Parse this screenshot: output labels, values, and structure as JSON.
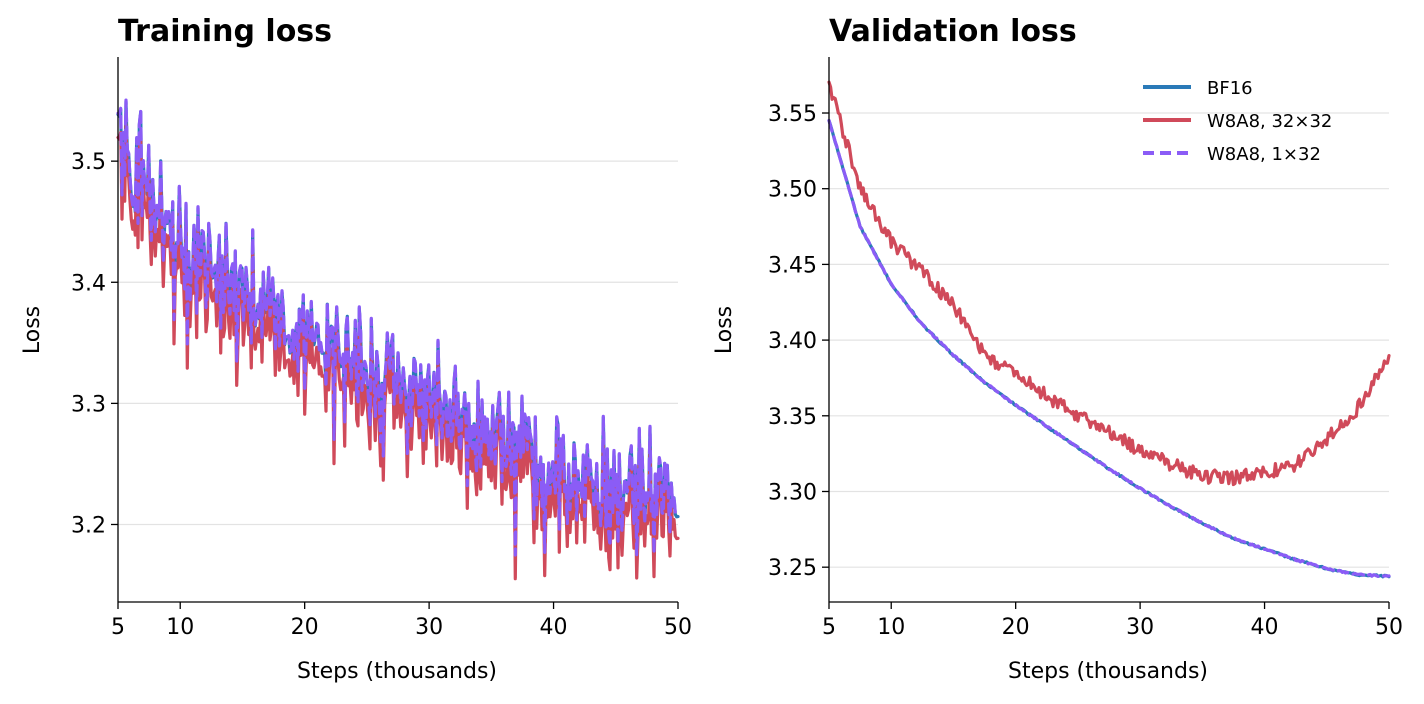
{
  "chart_data": [
    {
      "type": "line",
      "title": "Training loss",
      "xlabel": "Steps (thousands)",
      "ylabel": "Loss",
      "xlim": [
        5,
        50
      ],
      "ylim": [
        3.136,
        3.586
      ],
      "xticks": [
        5,
        10,
        20,
        30,
        40,
        50
      ],
      "yticks": [
        3.2,
        3.3,
        3.4,
        3.5
      ],
      "ytick_labels": [
        "3.2",
        "3.3",
        "3.4",
        "3.5"
      ],
      "grid": "horizontal",
      "legend": "none",
      "noisy": true,
      "series": [
        {
          "color": "#2a7ab8",
          "dash": "solid",
          "x": [
            5,
            7.5,
            10,
            12.5,
            15,
            17.5,
            20,
            22.5,
            25,
            27.5,
            30,
            32.5,
            35,
            37.5,
            40,
            42.5,
            45,
            47.5,
            50
          ],
          "y": [
            3.53,
            3.47,
            3.43,
            3.41,
            3.39,
            3.375,
            3.36,
            3.345,
            3.33,
            3.315,
            3.3,
            3.29,
            3.275,
            3.265,
            3.25,
            3.24,
            3.235,
            3.228,
            3.22
          ]
        },
        {
          "color": "#d04a5a",
          "dash": "solid",
          "x": [
            5,
            7.5,
            10,
            12.5,
            15,
            17.5,
            20,
            22.5,
            25,
            27.5,
            30,
            32.5,
            35,
            37.5,
            40,
            42.5,
            45,
            47.5,
            50
          ],
          "y": [
            3.515,
            3.455,
            3.415,
            3.395,
            3.375,
            3.36,
            3.345,
            3.33,
            3.315,
            3.3,
            3.288,
            3.276,
            3.262,
            3.25,
            3.236,
            3.226,
            3.22,
            3.214,
            3.206
          ]
        },
        {
          "color": "#8b5cf6",
          "dash": "dashed",
          "x": [
            5,
            7.5,
            10,
            12.5,
            15,
            17.5,
            20,
            22.5,
            25,
            27.5,
            30,
            32.5,
            35,
            37.5,
            40,
            42.5,
            45,
            47.5,
            50
          ],
          "y": [
            3.53,
            3.47,
            3.43,
            3.41,
            3.39,
            3.375,
            3.36,
            3.345,
            3.33,
            3.315,
            3.3,
            3.29,
            3.275,
            3.265,
            3.25,
            3.24,
            3.235,
            3.228,
            3.22
          ]
        }
      ]
    },
    {
      "type": "line",
      "title": "Validation loss",
      "xlabel": "Steps (thousands)",
      "ylabel": "Loss",
      "xlim": [
        5,
        50
      ],
      "ylim": [
        3.227,
        3.587
      ],
      "xticks": [
        5,
        10,
        20,
        30,
        40,
        50
      ],
      "yticks": [
        3.25,
        3.3,
        3.35,
        3.4,
        3.45,
        3.5,
        3.55
      ],
      "ytick_labels": [
        "3.25",
        "3.30",
        "3.35",
        "3.40",
        "3.45",
        "3.50",
        "3.55"
      ],
      "grid": "horizontal",
      "legend": "top-right",
      "noisy": false,
      "series": [
        {
          "name": "BF16",
          "color": "#2a7ab8",
          "dash": "solid",
          "x": [
            5,
            7.5,
            10,
            12.5,
            15,
            17.5,
            20,
            22.5,
            25,
            27.5,
            30,
            32.5,
            35,
            37.5,
            40,
            42.5,
            45,
            47.5,
            50
          ],
          "y": [
            3.545,
            3.475,
            3.437,
            3.41,
            3.39,
            3.372,
            3.357,
            3.343,
            3.329,
            3.315,
            3.302,
            3.29,
            3.279,
            3.269,
            3.262,
            3.255,
            3.249,
            3.245,
            3.244
          ]
        },
        {
          "name": "W8A8, 32×32",
          "color": "#d04a5a",
          "dash": "solid",
          "x": [
            5,
            7.5,
            10,
            12.5,
            15,
            17.5,
            20,
            22.5,
            25,
            27.5,
            30,
            32.5,
            35,
            37.5,
            40,
            42.5,
            45,
            47.5,
            50
          ],
          "y": [
            3.57,
            3.5,
            3.465,
            3.445,
            3.423,
            3.39,
            3.378,
            3.363,
            3.35,
            3.34,
            3.327,
            3.318,
            3.31,
            3.309,
            3.312,
            3.318,
            3.335,
            3.355,
            3.39
          ]
        },
        {
          "name": "W8A8, 1×32",
          "color": "#8b5cf6",
          "dash": "dashed",
          "x": [
            5,
            7.5,
            10,
            12.5,
            15,
            17.5,
            20,
            22.5,
            25,
            27.5,
            30,
            32.5,
            35,
            37.5,
            40,
            42.5,
            45,
            47.5,
            50
          ],
          "y": [
            3.545,
            3.475,
            3.437,
            3.41,
            3.39,
            3.372,
            3.357,
            3.343,
            3.329,
            3.315,
            3.302,
            3.29,
            3.279,
            3.269,
            3.262,
            3.255,
            3.249,
            3.245,
            3.244
          ]
        }
      ]
    }
  ]
}
